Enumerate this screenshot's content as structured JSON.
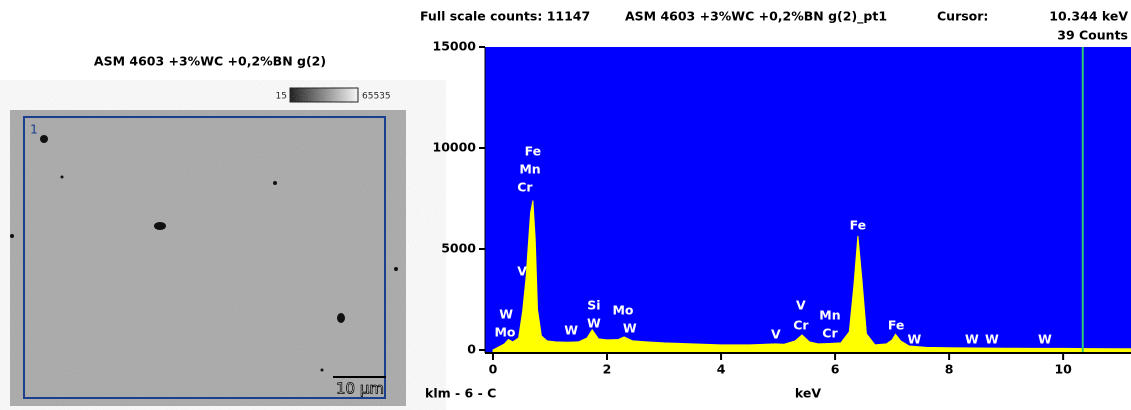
{
  "image_panel": {
    "title": "ASM 4603 +3%WC +0,2%BN g(2)",
    "colorbar": {
      "min": 15,
      "max": 65535
    },
    "region_label": "1",
    "scale_bar": "10 µm"
  },
  "chart_data": {
    "type": "area",
    "header": {
      "full_scale": "Full scale counts: 11147",
      "sample": "ASM 4603 +3%WC +0,2%BN g(2)_pt1",
      "cursor_label": "Cursor:",
      "cursor_counts": "39 Counts"
    },
    "cursor": {
      "value": 10.344,
      "label": "10.344 keV",
      "color": "#2ecc71"
    },
    "footer_label": "klm - 6 - C",
    "xlabel": "keV",
    "background": "#0000ff",
    "x": [
      0,
      0.1,
      0.2,
      0.27,
      0.35,
      0.45,
      0.52,
      0.58,
      0.62,
      0.66,
      0.7,
      0.74,
      0.78,
      0.85,
      0.95,
      1.1,
      1.3,
      1.5,
      1.65,
      1.74,
      1.85,
      2.0,
      2.2,
      2.3,
      2.45,
      2.7,
      3.0,
      3.5,
      4.0,
      4.5,
      4.95,
      5.1,
      5.3,
      5.42,
      5.55,
      5.7,
      5.9,
      6.1,
      6.25,
      6.33,
      6.4,
      6.47,
      6.55,
      6.7,
      6.9,
      7.0,
      7.06,
      7.15,
      7.3,
      7.6,
      8.0,
      8.5,
      9.0,
      9.5,
      10.0,
      10.5,
      11.0,
      11.19
    ],
    "series": [
      {
        "color": "#ffff00",
        "values": [
          0,
          150,
          300,
          520,
          400,
          600,
          1900,
          3600,
          5200,
          6800,
          7400,
          5500,
          2000,
          700,
          450,
          400,
          380,
          400,
          600,
          1000,
          550,
          500,
          520,
          650,
          450,
          400,
          350,
          300,
          250,
          250,
          300,
          280,
          450,
          750,
          400,
          300,
          320,
          350,
          900,
          3200,
          5650,
          3500,
          800,
          250,
          300,
          500,
          780,
          450,
          200,
          130,
          110,
          100,
          90,
          80,
          80,
          70,
          60,
          60
        ]
      }
    ],
    "xlim": [
      -0.14,
      11.19
    ],
    "ylim": [
      0,
      15000
    ],
    "xticks": [
      0,
      2,
      4,
      6,
      8,
      10
    ],
    "yticks": [
      0,
      5000,
      10000,
      15000
    ],
    "annotations": [
      {
        "text": "W",
        "x": 0.23,
        "y": 1730
      },
      {
        "text": "Mo",
        "x": 0.21,
        "y": 840
      },
      {
        "text": "V",
        "x": 0.51,
        "y": 3860
      },
      {
        "text": "Cr",
        "x": 0.56,
        "y": 8020
      },
      {
        "text": "Mn",
        "x": 0.65,
        "y": 8910
      },
      {
        "text": "Fe",
        "x": 0.7,
        "y": 9800
      },
      {
        "text": "W",
        "x": 1.37,
        "y": 940
      },
      {
        "text": "Si",
        "x": 1.77,
        "y": 2180
      },
      {
        "text": "W",
        "x": 1.77,
        "y": 1290
      },
      {
        "text": "Mo",
        "x": 2.28,
        "y": 1930
      },
      {
        "text": "W",
        "x": 2.4,
        "y": 1040
      },
      {
        "text": "V",
        "x": 4.96,
        "y": 740
      },
      {
        "text": "V",
        "x": 5.4,
        "y": 2180
      },
      {
        "text": "Cr",
        "x": 5.4,
        "y": 1190
      },
      {
        "text": "Mn",
        "x": 5.91,
        "y": 1680
      },
      {
        "text": "Cr",
        "x": 5.91,
        "y": 790
      },
      {
        "text": "Fe",
        "x": 6.4,
        "y": 6140
      },
      {
        "text": "Fe",
        "x": 7.07,
        "y": 1190
      },
      {
        "text": "W",
        "x": 7.39,
        "y": 500
      },
      {
        "text": "W",
        "x": 8.4,
        "y": 500
      },
      {
        "text": "W",
        "x": 8.75,
        "y": 500
      },
      {
        "text": "W",
        "x": 9.68,
        "y": 500
      }
    ]
  }
}
